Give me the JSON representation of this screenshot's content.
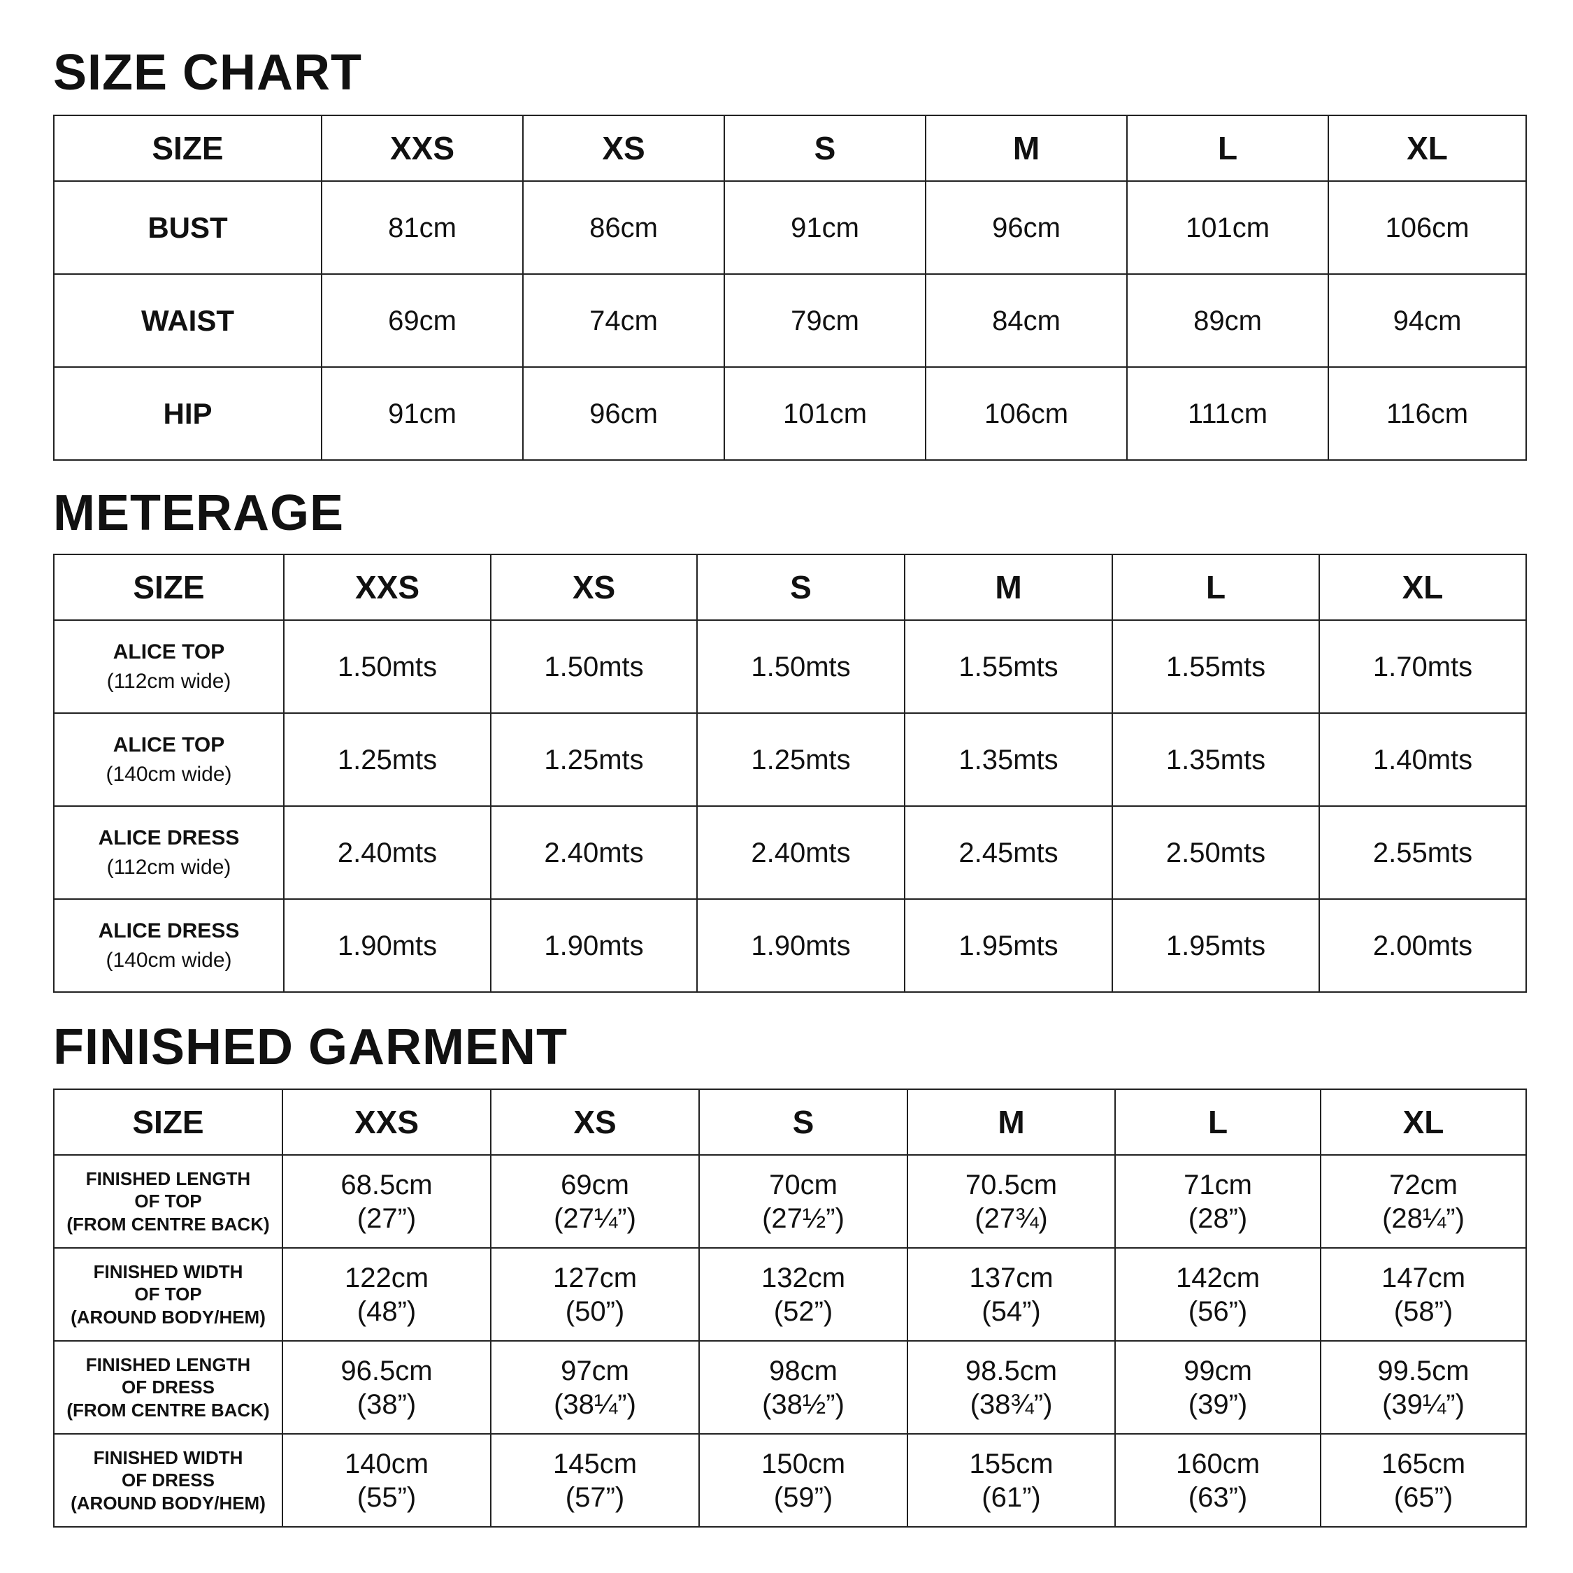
{
  "size_chart": {
    "title": "SIZE CHART",
    "header": [
      "SIZE",
      "XXS",
      "XS",
      "S",
      "M",
      "L",
      "XL"
    ],
    "rows": [
      {
        "label": [
          "BUST"
        ],
        "values": [
          [
            "81cm"
          ],
          [
            "86cm"
          ],
          [
            "91cm"
          ],
          [
            "96cm"
          ],
          [
            "101cm"
          ],
          [
            "106cm"
          ]
        ]
      },
      {
        "label": [
          "WAIST"
        ],
        "values": [
          [
            "69cm"
          ],
          [
            "74cm"
          ],
          [
            "79cm"
          ],
          [
            "84cm"
          ],
          [
            "89cm"
          ],
          [
            "94cm"
          ]
        ]
      },
      {
        "label": [
          "HIP"
        ],
        "values": [
          [
            "91cm"
          ],
          [
            "96cm"
          ],
          [
            "101cm"
          ],
          [
            "106cm"
          ],
          [
            "111cm"
          ],
          [
            "116cm"
          ]
        ]
      }
    ]
  },
  "meterage": {
    "title": "METERAGE",
    "header": [
      "SIZE",
      "XXS",
      "XS",
      "S",
      "M",
      "L",
      "XL"
    ],
    "rows": [
      {
        "label": [
          "ALICE TOP",
          "(112cm wide)"
        ],
        "values": [
          [
            "1.50mts"
          ],
          [
            "1.50mts"
          ],
          [
            "1.50mts"
          ],
          [
            "1.55mts"
          ],
          [
            "1.55mts"
          ],
          [
            "1.70mts"
          ]
        ]
      },
      {
        "label": [
          "ALICE TOP",
          "(140cm wide)"
        ],
        "values": [
          [
            "1.25mts"
          ],
          [
            "1.25mts"
          ],
          [
            "1.25mts"
          ],
          [
            "1.35mts"
          ],
          [
            "1.35mts"
          ],
          [
            "1.40mts"
          ]
        ]
      },
      {
        "label": [
          "ALICE DRESS",
          "(112cm wide)"
        ],
        "values": [
          [
            "2.40mts"
          ],
          [
            "2.40mts"
          ],
          [
            "2.40mts"
          ],
          [
            "2.45mts"
          ],
          [
            "2.50mts"
          ],
          [
            "2.55mts"
          ]
        ]
      },
      {
        "label": [
          "ALICE DRESS",
          "(140cm wide)"
        ],
        "values": [
          [
            "1.90mts"
          ],
          [
            "1.90mts"
          ],
          [
            "1.90mts"
          ],
          [
            "1.95mts"
          ],
          [
            "1.95mts"
          ],
          [
            "2.00mts"
          ]
        ]
      }
    ]
  },
  "finished_garment": {
    "title": "FINISHED GARMENT",
    "header": [
      "SIZE",
      "XXS",
      "XS",
      "S",
      "M",
      "L",
      "XL"
    ],
    "rows": [
      {
        "label": [
          "FINISHED LENGTH",
          "OF TOP",
          "(FROM CENTRE BACK)"
        ],
        "values": [
          [
            "68.5cm",
            "(27”)"
          ],
          [
            "69cm",
            "(27¼”)"
          ],
          [
            "70cm",
            "(27½”)"
          ],
          [
            "70.5cm",
            "(27¾)"
          ],
          [
            "71cm",
            "(28”)"
          ],
          [
            "72cm",
            "(28¼”)"
          ]
        ]
      },
      {
        "label": [
          "FINISHED WIDTH",
          "OF TOP",
          "(AROUND BODY/HEM)"
        ],
        "values": [
          [
            "122cm",
            "(48”)"
          ],
          [
            "127cm",
            "(50”)"
          ],
          [
            "132cm",
            "(52”)"
          ],
          [
            "137cm",
            "(54”)"
          ],
          [
            "142cm",
            "(56”)"
          ],
          [
            "147cm",
            "(58”)"
          ]
        ]
      },
      {
        "label": [
          "FINISHED LENGTH",
          "OF DRESS",
          "(FROM CENTRE BACK)"
        ],
        "values": [
          [
            "96.5cm",
            "(38”)"
          ],
          [
            "97cm",
            "(38¼”)"
          ],
          [
            "98cm",
            "(38½”)"
          ],
          [
            "98.5cm",
            "(38¾”)"
          ],
          [
            "99cm",
            "(39”)"
          ],
          [
            "99.5cm",
            "(39¼”)"
          ]
        ]
      },
      {
        "label": [
          "FINISHED WIDTH",
          "OF DRESS",
          "(AROUND BODY/HEM)"
        ],
        "values": [
          [
            "140cm",
            "(55”)"
          ],
          [
            "145cm",
            "(57”)"
          ],
          [
            "150cm",
            "(59”)"
          ],
          [
            "155cm",
            "(61”)"
          ],
          [
            "160cm",
            "(63”)"
          ],
          [
            "165cm",
            "(65”)"
          ]
        ]
      }
    ]
  }
}
